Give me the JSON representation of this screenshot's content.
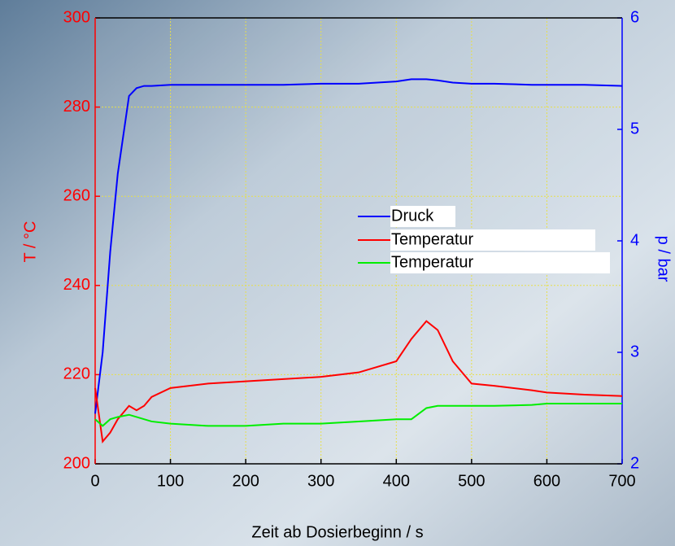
{
  "chart_data": {
    "type": "line",
    "x_label": "Zeit ab Dosierbeginn / s",
    "y_label": "T / °C",
    "y2_label": "p / bar",
    "x": [
      0,
      10,
      20,
      30,
      45,
      55,
      65,
      75,
      100,
      150,
      200,
      250,
      300,
      350,
      400,
      420,
      440,
      455,
      475,
      500,
      530,
      580,
      600,
      650,
      700
    ],
    "series": [
      {
        "name": "Druck",
        "color": "#0000ff",
        "axis": "y2",
        "values": [
          2.45,
          3.0,
          3.9,
          4.6,
          5.3,
          5.37,
          5.39,
          5.39,
          5.4,
          5.4,
          5.4,
          5.4,
          5.41,
          5.41,
          5.43,
          5.45,
          5.45,
          5.44,
          5.42,
          5.41,
          5.41,
          5.4,
          5.4,
          5.4,
          5.39
        ]
      },
      {
        "name": "Temperatur",
        "color": "#ff0000",
        "values": [
          217,
          205,
          207,
          210,
          213,
          212,
          213,
          215,
          217,
          218,
          218.5,
          219,
          219.5,
          220.5,
          223,
          228,
          232,
          230,
          223,
          218,
          217.5,
          216.5,
          216,
          215.5,
          215.2
        ]
      },
      {
        "name": "Temperatur",
        "color": "#00ee00",
        "values": [
          210,
          208.5,
          210,
          210.5,
          211,
          210.5,
          210,
          209.5,
          209,
          208.5,
          208.5,
          209,
          209,
          209.5,
          210,
          210,
          212.5,
          213,
          213,
          213,
          213,
          213.2,
          213.5,
          213.5,
          213.5
        ]
      }
    ],
    "xlim": [
      0,
      700
    ],
    "xticks": [
      0,
      100,
      200,
      300,
      400,
      500,
      600,
      700
    ],
    "ylim": [
      200,
      300
    ],
    "yticks": [
      200,
      220,
      240,
      260,
      280,
      300
    ],
    "y2lim": [
      2,
      6
    ],
    "y2ticks": [
      2,
      3,
      4,
      5,
      6
    ],
    "y_axis_color": "#ff0000",
    "y2_axis_color": "#0000ff",
    "grid": true
  }
}
